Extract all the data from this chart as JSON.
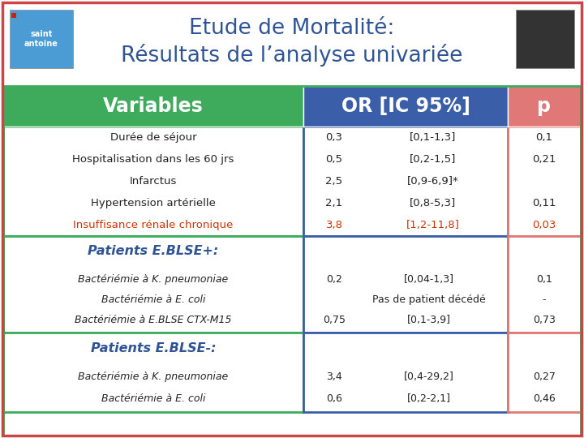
{
  "title_line1": "Etude de Mortalité:",
  "title_line2": "Résultats de l’analyse univariée",
  "title_color": "#2F5496",
  "header_bg_variables": "#3DAA5C",
  "header_bg_or": "#3A5EA8",
  "header_bg_p": "#E07878",
  "header_text_color": "#FFFFFF",
  "col1_header": "Variables",
  "col2_header": "OR [IC 95%]",
  "col3_header": "p",
  "outer_border_color": "#CC4444",
  "green_border": "#3DAA5C",
  "blue_border": "#3A5EA8",
  "pink_border": "#E07878",
  "section1_rows": [
    {
      "var": "Durée de séjour",
      "or": "0,3",
      "ic": "[0,1-1,3]",
      "p": "0,1",
      "color": "#222222"
    },
    {
      "var": "Hospitalisation dans les 60 jrs",
      "or": "0,5",
      "ic": "[0,2-1,5]",
      "p": "0,21",
      "color": "#222222"
    },
    {
      "var": "Infarctus",
      "or": "2,5",
      "ic": "[0,9-6,9]*",
      "p": "",
      "color": "#222222"
    },
    {
      "var": "Hypertension artérielle",
      "or": "2,1",
      "ic": "[0,8-5,3]",
      "p": "0,11",
      "color": "#222222"
    },
    {
      "var": "Insuffisance rénale chronique",
      "or": "3,8",
      "ic": "[1,2-11,8]",
      "p": "0,03",
      "color": "#CC3300"
    }
  ],
  "section2_title": "Patients E.BLSE+:",
  "section2_title_color": "#2F5496",
  "section2_rows": [
    {
      "var": "Bactériémie à K. pneumoniae",
      "or": "0,2",
      "ic": "[0,04-1,3]",
      "p": "0,1",
      "color": "#222222"
    },
    {
      "var": "Bactériémie à E. coli",
      "or": "",
      "ic": "Pas de patient décédé",
      "p": "-",
      "color": "#222222"
    },
    {
      "var": "Bactériémie à E.BLSE CTX-M15",
      "or": "0,75",
      "ic": "[0,1-3,9]",
      "p": "0,73",
      "color": "#222222"
    }
  ],
  "section3_title": "Patients E.BLSE-:",
  "section3_title_color": "#2F5496",
  "section3_rows": [
    {
      "var": "Bactériémie à K. pneumoniae",
      "or": "3,4",
      "ic": "[0,4-29,2]",
      "p": "0,27",
      "color": "#222222"
    },
    {
      "var": "Bactériémie à E. coli",
      "or": "0,6",
      "ic": "[0,2-2,1]",
      "p": "0,46",
      "color": "#222222"
    }
  ],
  "bg_white": "#FFFFFF"
}
